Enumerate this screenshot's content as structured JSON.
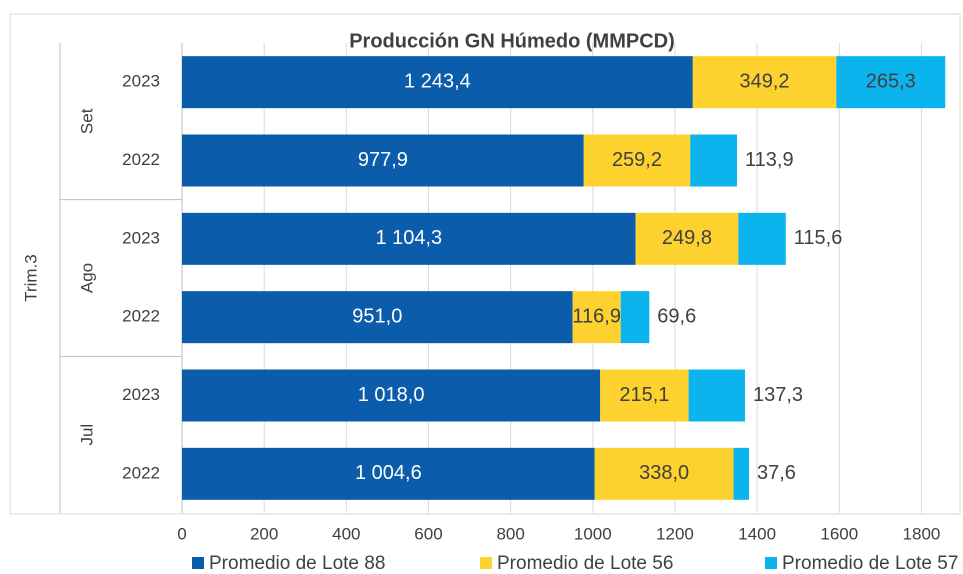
{
  "chart_data": {
    "type": "stacked_barh",
    "title": "Producción GN Húmedo (MMPCD)",
    "categories": [
      "2023",
      "2022",
      "2023",
      "2022",
      "2023",
      "2022"
    ],
    "category_groups": [
      "Set",
      "Ago",
      "Jul"
    ],
    "outer_category": "Trim.3",
    "series": [
      {
        "name": "Promedio de Lote 88",
        "color": "#0b5cab",
        "values": [
          1243.4,
          977.9,
          1104.3,
          951.0,
          1018.0,
          1004.6
        ],
        "value_labels": [
          "1 243,4",
          "977,9",
          "1 104,3",
          "951,0",
          "1 018,0",
          "1 004,6"
        ]
      },
      {
        "name": "Promedio de Lote 56",
        "color": "#fdd12e",
        "values": [
          349.2,
          259.2,
          249.8,
          116.9,
          215.1,
          338.0
        ],
        "value_labels": [
          "349,2",
          "259,2",
          "249,8",
          "116,9",
          "215,1",
          "338,0"
        ]
      },
      {
        "name": "Promedio de Lote 57",
        "color": "#0cb4ee",
        "values": [
          265.3,
          113.9,
          115.6,
          69.6,
          137.3,
          37.6
        ],
        "value_labels": [
          "265,3",
          "113,9",
          "115,6",
          "69,6",
          "137,3",
          "37,6"
        ]
      }
    ],
    "xlim": [
      0,
      1850
    ],
    "xticks": [
      0,
      200,
      400,
      600,
      800,
      1000,
      1200,
      1400,
      1600,
      1800
    ],
    "grid": true,
    "legend": "bottom"
  }
}
